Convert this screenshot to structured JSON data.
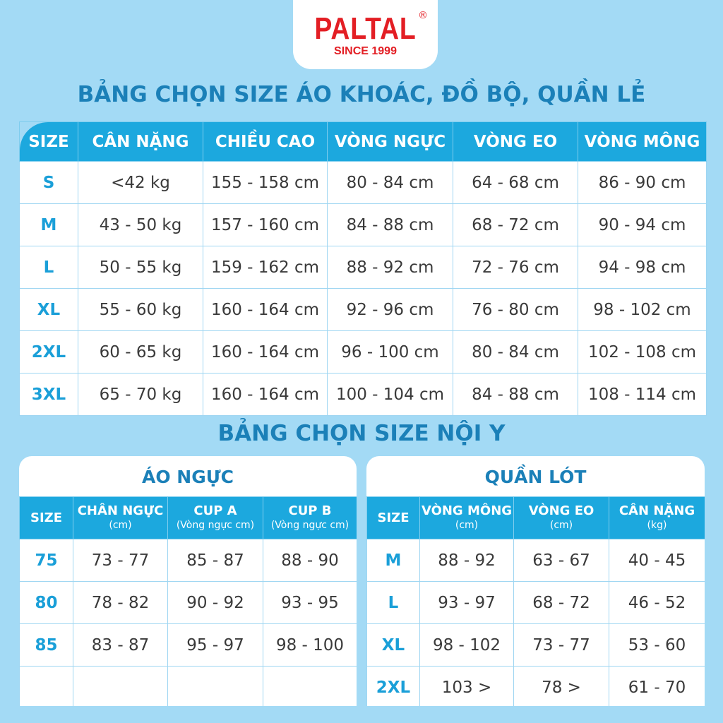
{
  "logo": {
    "brand": "PALTAL",
    "registered": "®",
    "tagline": "SINCE 1999"
  },
  "colors": {
    "background": "#a3daf5",
    "header": "#1ca8de",
    "title": "#1b80b8",
    "brand": "#e31e24"
  },
  "main_table": {
    "title": "BẢNG CHỌN SIZE ÁO KHOÁC, ĐỒ BỘ, QUẦN LẺ",
    "headers": [
      "SIZE",
      "CÂN NẶNG",
      "CHIỀU CAO",
      "VÒNG NGỰC",
      "VÒNG EO",
      "VÒNG MÔNG"
    ],
    "rows": [
      [
        "S",
        "<42 kg",
        "155 - 158 cm",
        "80 - 84 cm",
        "64 - 68 cm",
        "86 - 90 cm"
      ],
      [
        "M",
        "43 - 50 kg",
        "157 - 160 cm",
        "84 - 88 cm",
        "68 - 72 cm",
        "90 - 94 cm"
      ],
      [
        "L",
        "50 - 55 kg",
        "159 - 162 cm",
        "88 - 92 cm",
        "72 - 76 cm",
        "94 - 98 cm"
      ],
      [
        "XL",
        "55 - 60 kg",
        "160 - 164 cm",
        "92 - 96 cm",
        "76 - 80 cm",
        "98 - 102 cm"
      ],
      [
        "2XL",
        "60 - 65 kg",
        "160 - 164 cm",
        "96 - 100 cm",
        "80 - 84 cm",
        "102 - 108 cm"
      ],
      [
        "3XL",
        "65 - 70 kg",
        "160 - 164 cm",
        "100 - 104 cm",
        "84 - 88 cm",
        "108 - 114 cm"
      ]
    ]
  },
  "underwear_title": "BẢNG CHỌN SIZE NỘI Y",
  "bra_table": {
    "title": "ÁO NGỰC",
    "headers": [
      {
        "label": "SIZE",
        "sub": ""
      },
      {
        "label": "CHÂN NGỰC",
        "sub": "(cm)"
      },
      {
        "label": "CUP A",
        "sub": "(Vòng ngực cm)"
      },
      {
        "label": "CUP B",
        "sub": "(Vòng ngực cm)"
      }
    ],
    "rows": [
      [
        "75",
        "73 - 77",
        "85 - 87",
        "88 - 90"
      ],
      [
        "80",
        "78 - 82",
        "90 - 92",
        "93 - 95"
      ],
      [
        "85",
        "83 - 87",
        "95 - 97",
        "98 - 100"
      ],
      [
        "",
        "",
        "",
        ""
      ]
    ]
  },
  "panty_table": {
    "title": "QUẦN LÓT",
    "headers": [
      {
        "label": "SIZE",
        "sub": ""
      },
      {
        "label": "VÒNG MÔNG",
        "sub": "(cm)"
      },
      {
        "label": "VÒNG  EO",
        "sub": "(cm)"
      },
      {
        "label": "CÂN NẶNG",
        "sub": "(kg)"
      }
    ],
    "rows": [
      [
        "M",
        "88 - 92",
        "63 - 67",
        "40 - 45"
      ],
      [
        "L",
        "93 - 97",
        "68 - 72",
        "46 - 52"
      ],
      [
        "XL",
        "98 - 102",
        "73 - 77",
        "53 - 60"
      ],
      [
        "2XL",
        "103 >",
        "78 >",
        "61 - 70"
      ]
    ]
  }
}
